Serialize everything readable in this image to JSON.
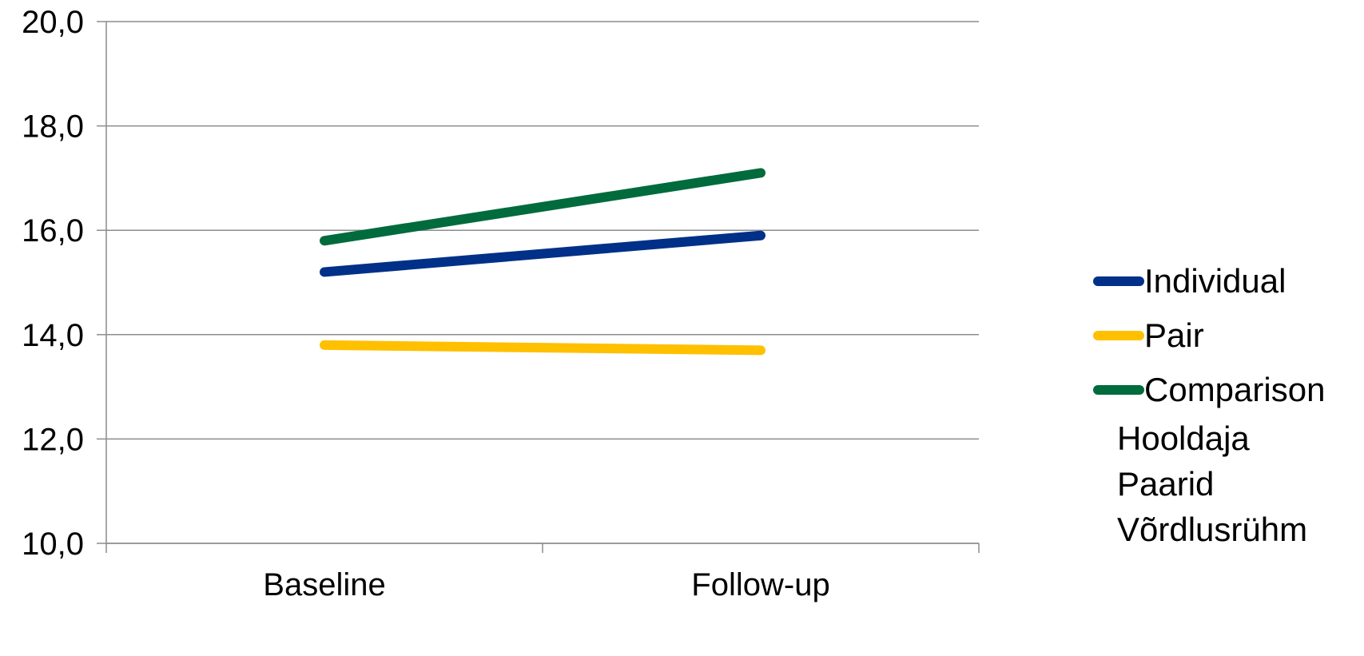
{
  "chart_data": {
    "type": "line",
    "categories": [
      "Baseline",
      "Follow-up"
    ],
    "series": [
      {
        "name": "Individual",
        "values": [
          15.2,
          15.9
        ],
        "color": "#003087"
      },
      {
        "name": "Pair",
        "values": [
          13.8,
          13.7
        ],
        "color": "#FFC000"
      },
      {
        "name": "Comparison",
        "values": [
          15.8,
          17.1
        ],
        "color": "#006B3C"
      }
    ],
    "ylim": [
      10,
      20
    ],
    "yticks": [
      "10,0",
      "12,0",
      "14,0",
      "16,0",
      "18,0",
      "20,0"
    ],
    "ytick_values": [
      10,
      12,
      14,
      16,
      18,
      20
    ],
    "grid": true,
    "legend_placement": "right",
    "extra_legend_labels": [
      "Hooldaja",
      "Paarid",
      "Võrdlusrühm"
    ]
  }
}
